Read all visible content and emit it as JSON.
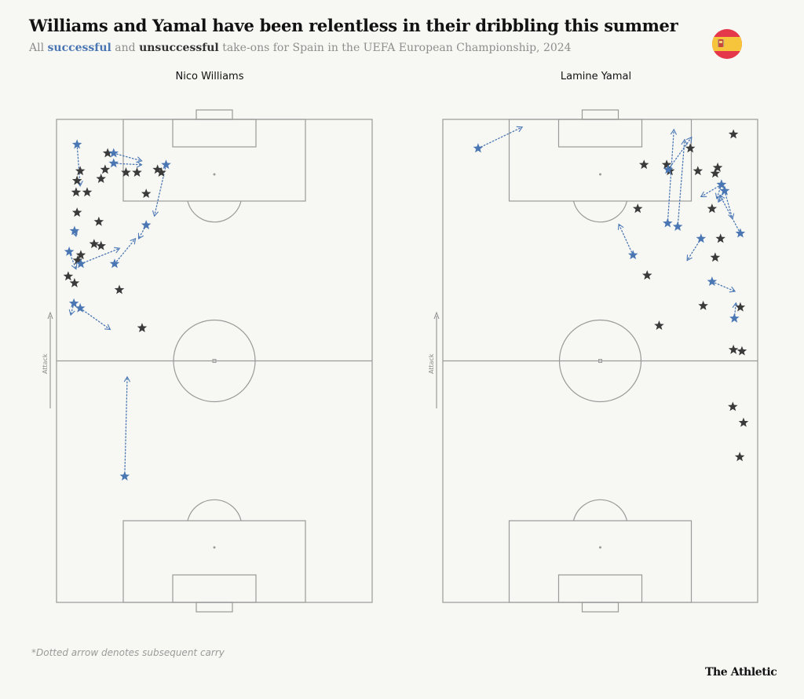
{
  "header": {
    "title": "Williams and Yamal have been relentless in their dribbling this summer",
    "subtitle_prefix": "All",
    "subtitle_successful": "successful",
    "subtitle_and": "and",
    "subtitle_unsuccessful": "unsuccessful",
    "subtitle_suffix": "take-ons for Spain in the UEFA European Championship, 2024"
  },
  "attack_label": "Attack",
  "footnote": "*Dotted arrow denotes subsequent carry",
  "brand": "The Athletic",
  "colors": {
    "successful": "#4a77b4",
    "unsuccessful": "#3a3a3a",
    "pitch_lines": "#9a9a9a",
    "background": "#f7f7f3"
  },
  "chart_data": [
    {
      "type": "scatter",
      "title": "Nico Williams",
      "units_note": "x = across pitch (0 left touchline to 100 right touchline), y = along pitch (0 attacking goal line to 100 own goal line); attack is upward",
      "series": [
        {
          "name": "successful",
          "points": [
            {
              "x": 6.5,
              "y": 5.2,
              "carry": [
                7.5,
                13.8
              ]
            },
            {
              "x": 18.1,
              "y": 7.0,
              "carry": [
                27,
                8.6
              ]
            },
            {
              "x": 18.1,
              "y": 9.1,
              "carry": [
                27,
                9.4
              ]
            },
            {
              "x": 34.7,
              "y": 9.4,
              "carry": [
                31,
                20
              ]
            },
            {
              "x": 28.4,
              "y": 21.9,
              "carry": [
                26,
                24.7
              ]
            },
            {
              "x": 5.7,
              "y": 23.1,
              "carry": [
                6.2,
                24.2
              ]
            },
            {
              "x": 4.0,
              "y": 27.4,
              "carry": [
                6.2,
                31
              ]
            },
            {
              "x": 7.7,
              "y": 29.9,
              "carry": [
                20,
                26.7
              ]
            },
            {
              "x": 18.4,
              "y": 29.9,
              "carry": [
                25,
                24.7
              ]
            },
            {
              "x": 5.5,
              "y": 38.1,
              "carry": [
                4.5,
                40.5
              ]
            },
            {
              "x": 7.5,
              "y": 39.1,
              "carry": [
                17,
                43.5
              ]
            },
            {
              "x": 21.6,
              "y": 73.9,
              "carry": [
                22.4,
                53.3
              ]
            }
          ]
        },
        {
          "name": "unsuccessful",
          "points": [
            {
              "x": 16.2,
              "y": 7.0
            },
            {
              "x": 7.5,
              "y": 10.7
            },
            {
              "x": 15.4,
              "y": 10.4
            },
            {
              "x": 22,
              "y": 11.0
            },
            {
              "x": 25.5,
              "y": 11.0
            },
            {
              "x": 32,
              "y": 10.4
            },
            {
              "x": 33.2,
              "y": 11.0
            },
            {
              "x": 6.5,
              "y": 12.7
            },
            {
              "x": 14.1,
              "y": 12.3
            },
            {
              "x": 6.2,
              "y": 15.1
            },
            {
              "x": 9.7,
              "y": 15.1
            },
            {
              "x": 28.4,
              "y": 15.4
            },
            {
              "x": 6.5,
              "y": 19.3
            },
            {
              "x": 13.4,
              "y": 21.2
            },
            {
              "x": 11.9,
              "y": 25.8
            },
            {
              "x": 14.1,
              "y": 26.2
            },
            {
              "x": 7.7,
              "y": 28.1
            },
            {
              "x": 6.7,
              "y": 29.2
            },
            {
              "x": 3.7,
              "y": 32.5
            },
            {
              "x": 5.7,
              "y": 33.9
            },
            {
              "x": 19.9,
              "y": 35.3
            },
            {
              "x": 27.1,
              "y": 43.2
            }
          ]
        }
      ]
    },
    {
      "type": "scatter",
      "title": "Lamine Yamal",
      "units_note": "x = across pitch (0 left touchline to 100 right touchline), y = along pitch (0 attacking goal line to 100 own goal line); attack is upward",
      "series": [
        {
          "name": "successful",
          "points": [
            {
              "x": 11.2,
              "y": 6.0,
              "carry": [
                25.2,
                1.6
              ]
            },
            {
              "x": 71.6,
              "y": 10.4,
              "carry": [
                79,
                3.7
              ]
            },
            {
              "x": 88.5,
              "y": 13.5,
              "carry": [
                82,
                16
              ]
            },
            {
              "x": 88.5,
              "y": 13.5,
              "carry": [
                87,
                16.4
              ]
            },
            {
              "x": 89.5,
              "y": 14.8,
              "carry": [
                87.5,
                17.1
              ]
            },
            {
              "x": 89.5,
              "y": 14.8,
              "carry": [
                92,
                20.6
              ]
            },
            {
              "x": 71.4,
              "y": 21.5,
              "carry": [
                73.4,
                2.1
              ]
            },
            {
              "x": 74.6,
              "y": 22.2,
              "carry": [
                76.8,
                4.2
              ]
            },
            {
              "x": 82,
              "y": 24.7,
              "carry": [
                77.6,
                29.2
              ]
            },
            {
              "x": 94.5,
              "y": 23.6,
              "carry": [
                88,
                15.7
              ]
            },
            {
              "x": 60.4,
              "y": 28.1,
              "carry": [
                55.9,
                21.7
              ]
            },
            {
              "x": 85.5,
              "y": 33.6,
              "carry": [
                92.8,
                35.6
              ]
            },
            {
              "x": 92.6,
              "y": 41.2,
              "carry": [
                93.1,
                38
              ]
            }
          ]
        },
        {
          "name": "unsuccessful",
          "points": [
            {
              "x": 92.3,
              "y": 3.1
            },
            {
              "x": 78.6,
              "y": 6.0
            },
            {
              "x": 63.9,
              "y": 9.4
            },
            {
              "x": 71.1,
              "y": 9.4
            },
            {
              "x": 72.1,
              "y": 10.7
            },
            {
              "x": 81,
              "y": 10.7
            },
            {
              "x": 87.3,
              "y": 10.0
            },
            {
              "x": 86.5,
              "y": 11.2
            },
            {
              "x": 61.9,
              "y": 18.5
            },
            {
              "x": 85.5,
              "y": 18.5
            },
            {
              "x": 88.2,
              "y": 24.7
            },
            {
              "x": 86.5,
              "y": 28.6
            },
            {
              "x": 64.9,
              "y": 32.3
            },
            {
              "x": 94.5,
              "y": 38.9
            },
            {
              "x": 82.7,
              "y": 38.6
            },
            {
              "x": 68.7,
              "y": 42.7
            },
            {
              "x": 92.3,
              "y": 47.7
            },
            {
              "x": 95,
              "y": 48.0
            },
            {
              "x": 92.1,
              "y": 59.5
            },
            {
              "x": 95.5,
              "y": 62.8
            },
            {
              "x": 94.3,
              "y": 69.9
            }
          ]
        }
      ]
    }
  ]
}
